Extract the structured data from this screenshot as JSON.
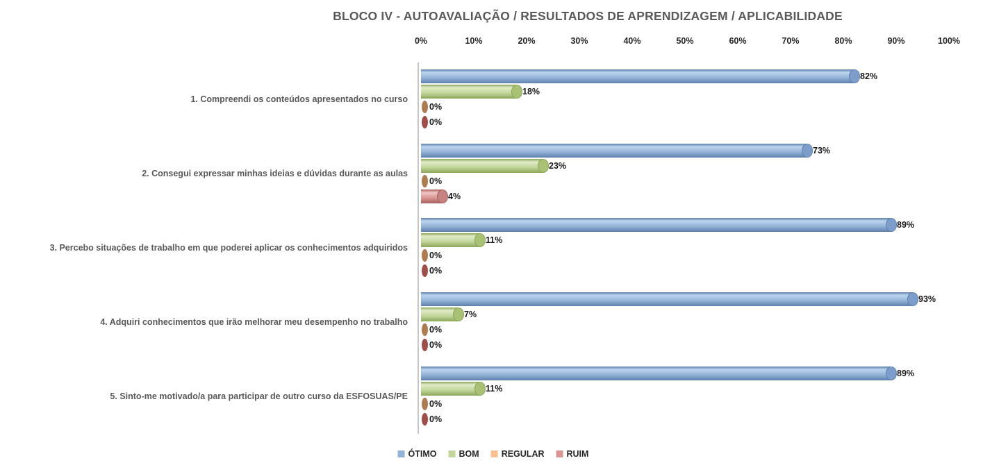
{
  "chart_data": {
    "type": "bar",
    "orientation": "horizontal",
    "style": "3d-cylinder",
    "title": "BLOCO IV - AUTOAVALIAÇÃO / RESULTADOS DE APRENDIZAGEM / APLICABILIDADE",
    "categories": [
      "1. Compreendi os conteúdos apresentados no curso",
      "2. Consegui expressar minhas ideias e dúvidas durante as aulas",
      "3. Percebo situações de trabalho em que poderei aplicar os conhecimentos adquiridos",
      "4. Adquiri conhecimentos que irão melhorar meu desempenho no trabalho",
      "5. Sinto-me motivado/a para participar de outro curso da ESFOSUAS/PE"
    ],
    "series": [
      {
        "name": "ÓTIMO",
        "color": "#95B3D7",
        "light": "#BCD5F0",
        "edge": "#5E80AE",
        "cap": "#7D9DCB",
        "zero_cap": "#6F92C1",
        "values": [
          82,
          73,
          89,
          93,
          89
        ]
      },
      {
        "name": "BOM",
        "color": "#C3D69B",
        "light": "#E2ECC9",
        "edge": "#8BA659",
        "cap": "#A9C175",
        "zero_cap": "#9FB96B",
        "values": [
          18,
          23,
          11,
          7,
          11
        ]
      },
      {
        "name": "REGULAR",
        "color": "#FAC08F",
        "light": "#FDDCC0",
        "edge": "#D89A5E",
        "cap": "#E0A96E",
        "zero_cap": "#AD7C51",
        "values": [
          0,
          0,
          0,
          0,
          0
        ]
      },
      {
        "name": "RUIM",
        "color": "#D99694",
        "light": "#EFC6C4",
        "edge": "#A65F5C",
        "cap": "#C58280",
        "zero_cap": "#9D4E4A",
        "values": [
          0,
          4,
          0,
          0,
          0
        ]
      }
    ],
    "xlim": [
      0,
      100
    ],
    "x_ticks": [
      "0%",
      "10%",
      "20%",
      "30%",
      "40%",
      "50%",
      "60%",
      "70%",
      "80%",
      "90%",
      "100%"
    ],
    "value_label_suffix": "%",
    "legend_position": "bottom",
    "grid": false,
    "background": "#FFFFFF",
    "axis_line_color": "#C6C6C6",
    "title_color": "#595959",
    "label_color": "#1A1A1A"
  }
}
